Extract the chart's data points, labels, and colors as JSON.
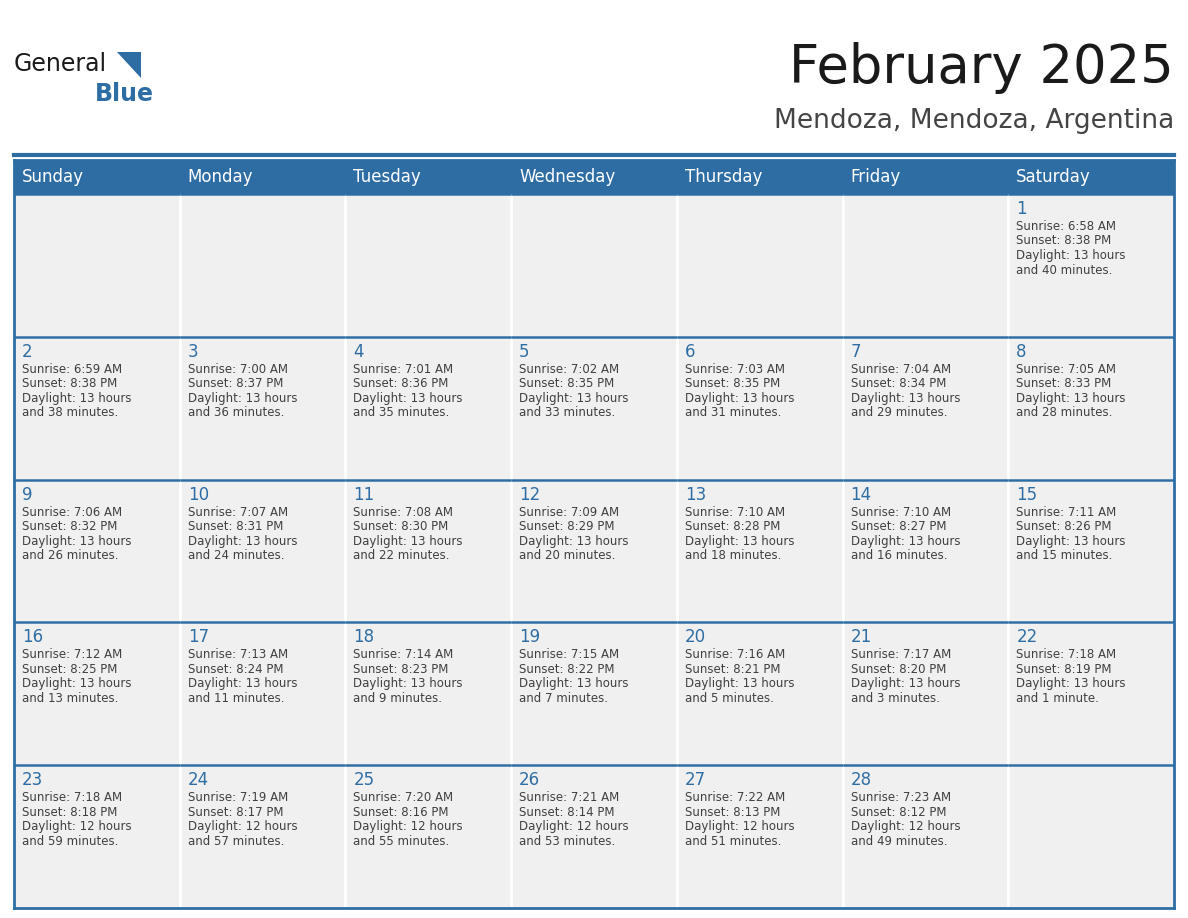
{
  "title": "February 2025",
  "subtitle": "Mendoza, Mendoza, Argentina",
  "days_of_week": [
    "Sunday",
    "Monday",
    "Tuesday",
    "Wednesday",
    "Thursday",
    "Friday",
    "Saturday"
  ],
  "header_bg": "#2E6DA4",
  "header_text_color": "#FFFFFF",
  "cell_bg": "#F0F0F0",
  "border_color": "#2E6DA4",
  "day_num_color": "#2E6DA4",
  "cell_text_color": "#404040",
  "white": "#FFFFFF",
  "title_color": "#1a1a1a",
  "subtitle_color": "#444444",
  "logo_general_color": "#1a1a1a",
  "logo_blue_color": "#2E6DA4",
  "logo_triangle_color": "#2E6DA4",
  "calendar_data": [
    [
      null,
      null,
      null,
      null,
      null,
      null,
      {
        "day": "1",
        "sunrise": "6:58 AM",
        "sunset": "8:38 PM",
        "daylight_l1": "Daylight: 13 hours",
        "daylight_l2": "and 40 minutes."
      }
    ],
    [
      {
        "day": "2",
        "sunrise": "6:59 AM",
        "sunset": "8:38 PM",
        "daylight_l1": "Daylight: 13 hours",
        "daylight_l2": "and 38 minutes."
      },
      {
        "day": "3",
        "sunrise": "7:00 AM",
        "sunset": "8:37 PM",
        "daylight_l1": "Daylight: 13 hours",
        "daylight_l2": "and 36 minutes."
      },
      {
        "day": "4",
        "sunrise": "7:01 AM",
        "sunset": "8:36 PM",
        "daylight_l1": "Daylight: 13 hours",
        "daylight_l2": "and 35 minutes."
      },
      {
        "day": "5",
        "sunrise": "7:02 AM",
        "sunset": "8:35 PM",
        "daylight_l1": "Daylight: 13 hours",
        "daylight_l2": "and 33 minutes."
      },
      {
        "day": "6",
        "sunrise": "7:03 AM",
        "sunset": "8:35 PM",
        "daylight_l1": "Daylight: 13 hours",
        "daylight_l2": "and 31 minutes."
      },
      {
        "day": "7",
        "sunrise": "7:04 AM",
        "sunset": "8:34 PM",
        "daylight_l1": "Daylight: 13 hours",
        "daylight_l2": "and 29 minutes."
      },
      {
        "day": "8",
        "sunrise": "7:05 AM",
        "sunset": "8:33 PM",
        "daylight_l1": "Daylight: 13 hours",
        "daylight_l2": "and 28 minutes."
      }
    ],
    [
      {
        "day": "9",
        "sunrise": "7:06 AM",
        "sunset": "8:32 PM",
        "daylight_l1": "Daylight: 13 hours",
        "daylight_l2": "and 26 minutes."
      },
      {
        "day": "10",
        "sunrise": "7:07 AM",
        "sunset": "8:31 PM",
        "daylight_l1": "Daylight: 13 hours",
        "daylight_l2": "and 24 minutes."
      },
      {
        "day": "11",
        "sunrise": "7:08 AM",
        "sunset": "8:30 PM",
        "daylight_l1": "Daylight: 13 hours",
        "daylight_l2": "and 22 minutes."
      },
      {
        "day": "12",
        "sunrise": "7:09 AM",
        "sunset": "8:29 PM",
        "daylight_l1": "Daylight: 13 hours",
        "daylight_l2": "and 20 minutes."
      },
      {
        "day": "13",
        "sunrise": "7:10 AM",
        "sunset": "8:28 PM",
        "daylight_l1": "Daylight: 13 hours",
        "daylight_l2": "and 18 minutes."
      },
      {
        "day": "14",
        "sunrise": "7:10 AM",
        "sunset": "8:27 PM",
        "daylight_l1": "Daylight: 13 hours",
        "daylight_l2": "and 16 minutes."
      },
      {
        "day": "15",
        "sunrise": "7:11 AM",
        "sunset": "8:26 PM",
        "daylight_l1": "Daylight: 13 hours",
        "daylight_l2": "and 15 minutes."
      }
    ],
    [
      {
        "day": "16",
        "sunrise": "7:12 AM",
        "sunset": "8:25 PM",
        "daylight_l1": "Daylight: 13 hours",
        "daylight_l2": "and 13 minutes."
      },
      {
        "day": "17",
        "sunrise": "7:13 AM",
        "sunset": "8:24 PM",
        "daylight_l1": "Daylight: 13 hours",
        "daylight_l2": "and 11 minutes."
      },
      {
        "day": "18",
        "sunrise": "7:14 AM",
        "sunset": "8:23 PM",
        "daylight_l1": "Daylight: 13 hours",
        "daylight_l2": "and 9 minutes."
      },
      {
        "day": "19",
        "sunrise": "7:15 AM",
        "sunset": "8:22 PM",
        "daylight_l1": "Daylight: 13 hours",
        "daylight_l2": "and 7 minutes."
      },
      {
        "day": "20",
        "sunrise": "7:16 AM",
        "sunset": "8:21 PM",
        "daylight_l1": "Daylight: 13 hours",
        "daylight_l2": "and 5 minutes."
      },
      {
        "day": "21",
        "sunrise": "7:17 AM",
        "sunset": "8:20 PM",
        "daylight_l1": "Daylight: 13 hours",
        "daylight_l2": "and 3 minutes."
      },
      {
        "day": "22",
        "sunrise": "7:18 AM",
        "sunset": "8:19 PM",
        "daylight_l1": "Daylight: 13 hours",
        "daylight_l2": "and 1 minute."
      }
    ],
    [
      {
        "day": "23",
        "sunrise": "7:18 AM",
        "sunset": "8:18 PM",
        "daylight_l1": "Daylight: 12 hours",
        "daylight_l2": "and 59 minutes."
      },
      {
        "day": "24",
        "sunrise": "7:19 AM",
        "sunset": "8:17 PM",
        "daylight_l1": "Daylight: 12 hours",
        "daylight_l2": "and 57 minutes."
      },
      {
        "day": "25",
        "sunrise": "7:20 AM",
        "sunset": "8:16 PM",
        "daylight_l1": "Daylight: 12 hours",
        "daylight_l2": "and 55 minutes."
      },
      {
        "day": "26",
        "sunrise": "7:21 AM",
        "sunset": "8:14 PM",
        "daylight_l1": "Daylight: 12 hours",
        "daylight_l2": "and 53 minutes."
      },
      {
        "day": "27",
        "sunrise": "7:22 AM",
        "sunset": "8:13 PM",
        "daylight_l1": "Daylight: 12 hours",
        "daylight_l2": "and 51 minutes."
      },
      {
        "day": "28",
        "sunrise": "7:23 AM",
        "sunset": "8:12 PM",
        "daylight_l1": "Daylight: 12 hours",
        "daylight_l2": "and 49 minutes."
      },
      null
    ]
  ]
}
